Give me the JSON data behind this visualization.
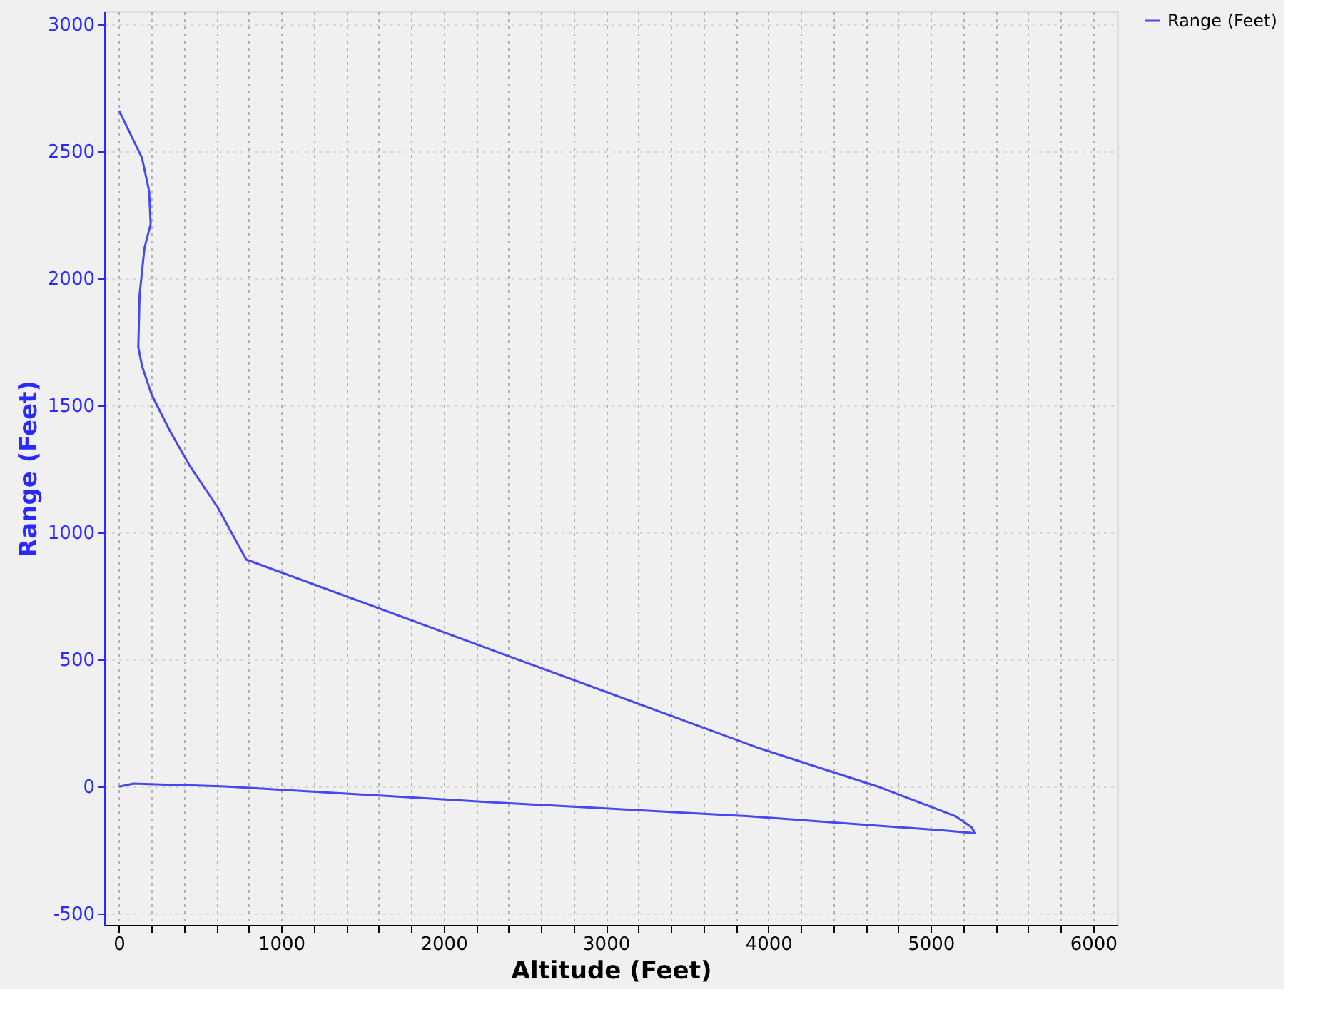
{
  "chart_data": {
    "type": "line",
    "xlabel": "Altitude (Feet)",
    "ylabel": "Range (Feet)",
    "xlim": [
      -90,
      6150
    ],
    "ylim": [
      -545,
      3050
    ],
    "xticks": [
      0,
      {
        "value": 200,
        "label": null
      },
      {
        "value": 400,
        "label": null
      },
      {
        "value": 600,
        "label": null
      },
      {
        "value": 800,
        "label": null
      },
      1000,
      {
        "value": 1200,
        "label": null
      },
      {
        "value": 1400,
        "label": null
      },
      {
        "value": 1600,
        "label": null
      },
      {
        "value": 1800,
        "label": null
      },
      2000,
      {
        "value": 2200,
        "label": null
      },
      {
        "value": 2400,
        "label": null
      },
      {
        "value": 2600,
        "label": null
      },
      {
        "value": 2800,
        "label": null
      },
      3000,
      {
        "value": 3200,
        "label": null
      },
      {
        "value": 3400,
        "label": null
      },
      {
        "value": 3600,
        "label": null
      },
      {
        "value": 3800,
        "label": null
      },
      4000,
      {
        "value": 4200,
        "label": null
      },
      {
        "value": 4400,
        "label": null
      },
      {
        "value": 4600,
        "label": null
      },
      {
        "value": 4800,
        "label": null
      },
      5000,
      {
        "value": 5200,
        "label": null
      },
      {
        "value": 5400,
        "label": null
      },
      {
        "value": 5600,
        "label": null
      },
      {
        "value": 5800,
        "label": null
      },
      6000
    ],
    "yticks": [
      -500,
      0,
      500,
      1000,
      1500,
      2000,
      2500,
      3000
    ],
    "grid": true,
    "legend": "top right",
    "line_style": "solid",
    "marker": "none",
    "series": [
      {
        "name": "Range (Feet)",
        "color": "#4848f0",
        "x": [
          0,
          9,
          90,
          656,
          2265,
          3866,
          5073,
          5274,
          5250,
          5152,
          4671,
          3946,
          2400,
          785,
          609,
          434,
          318,
          201,
          143,
          120,
          128,
          158,
          196,
          187,
          143,
          3
        ],
        "values": [
          0,
          0,
          11,
          0,
          -61,
          -117,
          -173,
          -184,
          -160,
          -117,
          0,
          150,
          513,
          893,
          1098,
          1265,
          1395,
          1544,
          1655,
          1729,
          1934,
          2119,
          2213,
          2342,
          2473,
          2658
        ]
      }
    ]
  }
}
